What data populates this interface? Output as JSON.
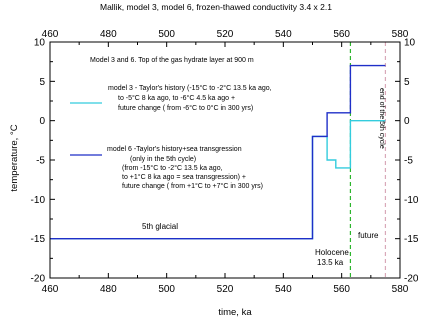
{
  "chart_data": {
    "type": "line",
    "title": "Mallik, model 3, model 6, frozen-thawed conductivity 3.4 x 2.1",
    "xlabel": "time, ka",
    "ylabel": "temperature, °C",
    "xlim": [
      460,
      580
    ],
    "ylim": [
      -20,
      10
    ],
    "x_ticks": [
      460,
      480,
      500,
      520,
      540,
      560,
      580
    ],
    "y_ticks": [
      -20,
      -15,
      -10,
      -5,
      0,
      5,
      10
    ],
    "grid": false,
    "series": [
      {
        "name": "model 3",
        "color": "#33ccdd",
        "x": [
          460,
          550,
          550,
          555,
          555,
          558,
          558,
          563,
          563,
          575
        ],
        "y": [
          -15,
          -15,
          -2,
          -2,
          -5,
          -5,
          -6,
          -6,
          0,
          0
        ]
      },
      {
        "name": "model 6",
        "color": "#1f2fc8",
        "x": [
          460,
          550,
          550,
          555,
          555,
          563,
          563,
          575
        ],
        "y": [
          -15,
          -15,
          -2,
          -2,
          1,
          1,
          7,
          7
        ]
      }
    ],
    "reference_lines": [
      {
        "x": 563,
        "color": "#2db52d",
        "style": "dashed"
      },
      {
        "x": 575,
        "color": "#d9a9b9",
        "style": "dashed"
      }
    ],
    "annotations": {
      "top_note": "Model 3 and 6.  Top of the gas hydrate layer at 900 m",
      "model3_legend": [
        "model 3 - Taylor's history (-15°C to -2°C 13.5 ka ago,",
        "to -5°C 8 ka ago, to -6°C 4.5 ka ago +",
        "future change ( from -6°C to 0°C in 300 yrs)"
      ],
      "model6_legend": [
        "model 6 -Taylor's history+sea transgression",
        "(only in the 5th cycle)",
        "(from -15°C to -2°C 13.5 ka ago,",
        "to +1°C 8 ka ago = sea transgression) +",
        "future change ( from +1°C to +7°C in 300 yrs)"
      ],
      "glacial": "5th glacial",
      "holocene": "Holocene",
      "holocene_age": "13.5 ka",
      "future": "future",
      "end_cycle": "end of the 5th cycle"
    }
  }
}
